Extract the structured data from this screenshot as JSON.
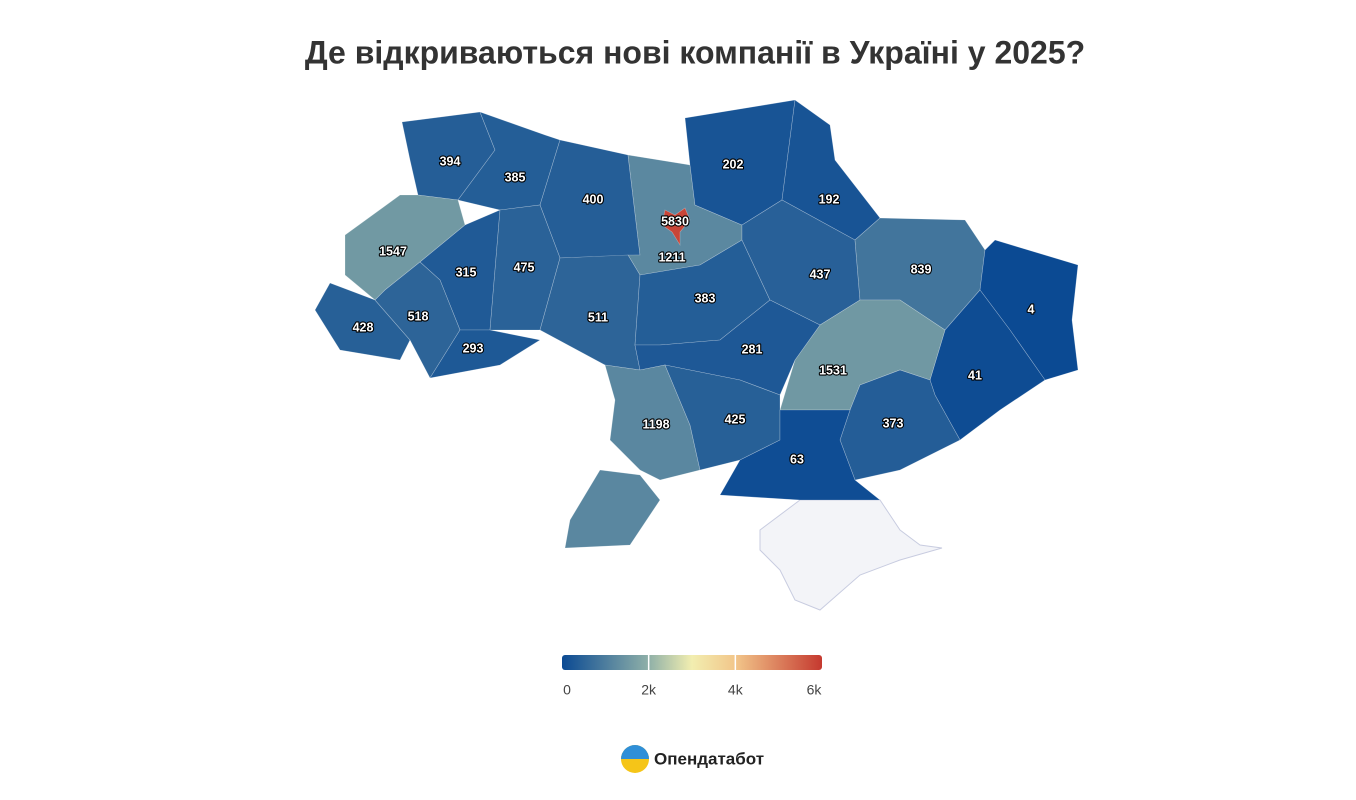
{
  "title": "Де відкриваються нові компанії в Україні у 2025?",
  "regions": [
    394,
    385,
    400,
    5830,
    1211,
    202,
    192,
    1547,
    315,
    475,
    428,
    518,
    293,
    511,
    383,
    437,
    839,
    4,
    41,
    1531,
    281,
    1198,
    425,
    373,
    63
  ],
  "color_scale": [
    {
      "value": 0,
      "color": "#0b4a93"
    },
    {
      "value": 2000,
      "color": "#8fb0a8"
    },
    {
      "value": 3000,
      "color": "#f2eeb0"
    },
    {
      "value": 4000,
      "color": "#f2c68a"
    },
    {
      "value": 6000,
      "color": "#c5392f"
    }
  ],
  "legend_lim": [
    0,
    6000
  ],
  "legend_ticks": [
    0,
    {
      "value": 2000,
      "label": "2k"
    },
    {
      "value": 4000,
      "label": "4k"
    },
    {
      "value": 6000,
      "label": "6k"
    }
  ],
  "brand": "Опендатабот"
}
